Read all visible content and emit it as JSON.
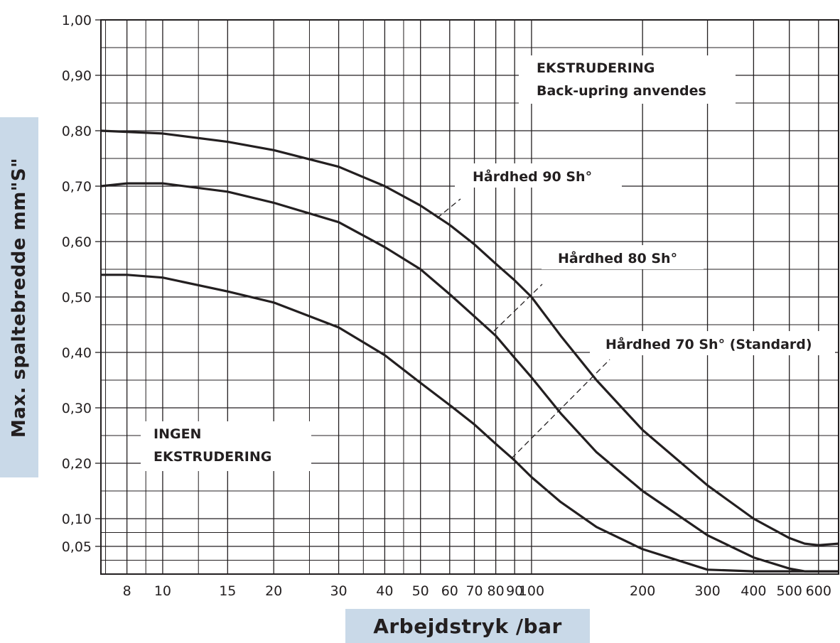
{
  "chart_data": {
    "type": "line",
    "xscale": "log",
    "xlim": [
      6.8,
      680
    ],
    "ylim": [
      0,
      1.0
    ],
    "xlabel": "Arbejdstryk /bar",
    "ylabel": "Max. spaltebredde mm\"S\"",
    "grid": true,
    "x_ticks": [
      {
        "value": 8,
        "label": "8"
      },
      {
        "value": 10,
        "label": "10"
      },
      {
        "value": 15,
        "label": "15"
      },
      {
        "value": 20,
        "label": "20"
      },
      {
        "value": 30,
        "label": "30"
      },
      {
        "value": 40,
        "label": "40"
      },
      {
        "value": 50,
        "label": "50"
      },
      {
        "value": 60,
        "label": "60"
      },
      {
        "value": 70,
        "label": "70"
      },
      {
        "value": 80,
        "label": "80"
      },
      {
        "value": 90,
        "label": "90"
      },
      {
        "value": 100,
        "label": "100"
      },
      {
        "value": 200,
        "label": "200"
      },
      {
        "value": 300,
        "label": "300"
      },
      {
        "value": 400,
        "label": "400"
      },
      {
        "value": 500,
        "label": "500"
      },
      {
        "value": 600,
        "label": "600"
      }
    ],
    "y_ticks": [
      {
        "value": 1.0,
        "label": "1,00"
      },
      {
        "value": 0.9,
        "label": "0,90"
      },
      {
        "value": 0.8,
        "label": "0,80"
      },
      {
        "value": 0.7,
        "label": "0,70"
      },
      {
        "value": 0.6,
        "label": "0,60"
      },
      {
        "value": 0.5,
        "label": "0,50"
      },
      {
        "value": 0.4,
        "label": "0,40"
      },
      {
        "value": 0.3,
        "label": "0,30"
      },
      {
        "value": 0.2,
        "label": "0,20"
      },
      {
        "value": 0.1,
        "label": "0,10"
      },
      {
        "value": 0.05,
        "label": "0,05"
      }
    ],
    "series": [
      {
        "name": "Hårdhed 90 Sh°",
        "x": [
          6.8,
          10,
          15,
          20,
          30,
          40,
          50,
          60,
          70,
          80,
          90,
          100,
          120,
          150,
          200,
          300,
          400,
          500,
          550,
          600,
          680
        ],
        "y": [
          0.8,
          0.795,
          0.78,
          0.765,
          0.735,
          0.7,
          0.665,
          0.63,
          0.595,
          0.56,
          0.53,
          0.5,
          0.43,
          0.35,
          0.26,
          0.16,
          0.1,
          0.065,
          0.055,
          0.052,
          0.055
        ]
      },
      {
        "name": "Hårdhed 80 Sh°",
        "x": [
          6.8,
          8,
          10,
          15,
          20,
          30,
          40,
          50,
          60,
          70,
          80,
          90,
          100,
          120,
          150,
          200,
          300,
          400,
          500,
          550,
          600,
          680
        ],
        "y": [
          0.7,
          0.705,
          0.705,
          0.69,
          0.67,
          0.635,
          0.59,
          0.55,
          0.505,
          0.465,
          0.43,
          0.39,
          0.355,
          0.29,
          0.22,
          0.15,
          0.07,
          0.03,
          0.01,
          0.005,
          0.005,
          0.005
        ]
      },
      {
        "name": "Hårdhed 70 Sh° (Standard)",
        "x": [
          6.8,
          8,
          10,
          15,
          20,
          30,
          40,
          50,
          60,
          70,
          80,
          90,
          100,
          120,
          150,
          200,
          300,
          400,
          500,
          600,
          680
        ],
        "y": [
          0.54,
          0.54,
          0.535,
          0.51,
          0.49,
          0.445,
          0.395,
          0.345,
          0.305,
          0.27,
          0.235,
          0.205,
          0.175,
          0.13,
          0.085,
          0.045,
          0.008,
          0.005,
          0.005,
          0.005,
          0.005
        ]
      }
    ],
    "annotations": [
      {
        "id": "ekstrudering",
        "lines": [
          "EKSTRUDERING",
          "Back-upring anvendes"
        ]
      },
      {
        "id": "ingen",
        "lines": [
          "INGEN",
          "EKSTRUDERING"
        ]
      },
      {
        "id": "h90",
        "text": "Hårdhed 90 Sh°"
      },
      {
        "id": "h80",
        "text": "Hårdhed 80 Sh°"
      },
      {
        "id": "h70",
        "text": "Hårdhed 70 Sh° (Standard)"
      }
    ],
    "minor_y_lines": [
      0.025,
      0.075,
      0.15,
      0.25,
      0.35,
      0.45,
      0.55,
      0.65,
      0.75,
      0.85,
      0.95
    ],
    "minor_x_lines": [
      7,
      9,
      12.5,
      25,
      35,
      45
    ]
  }
}
